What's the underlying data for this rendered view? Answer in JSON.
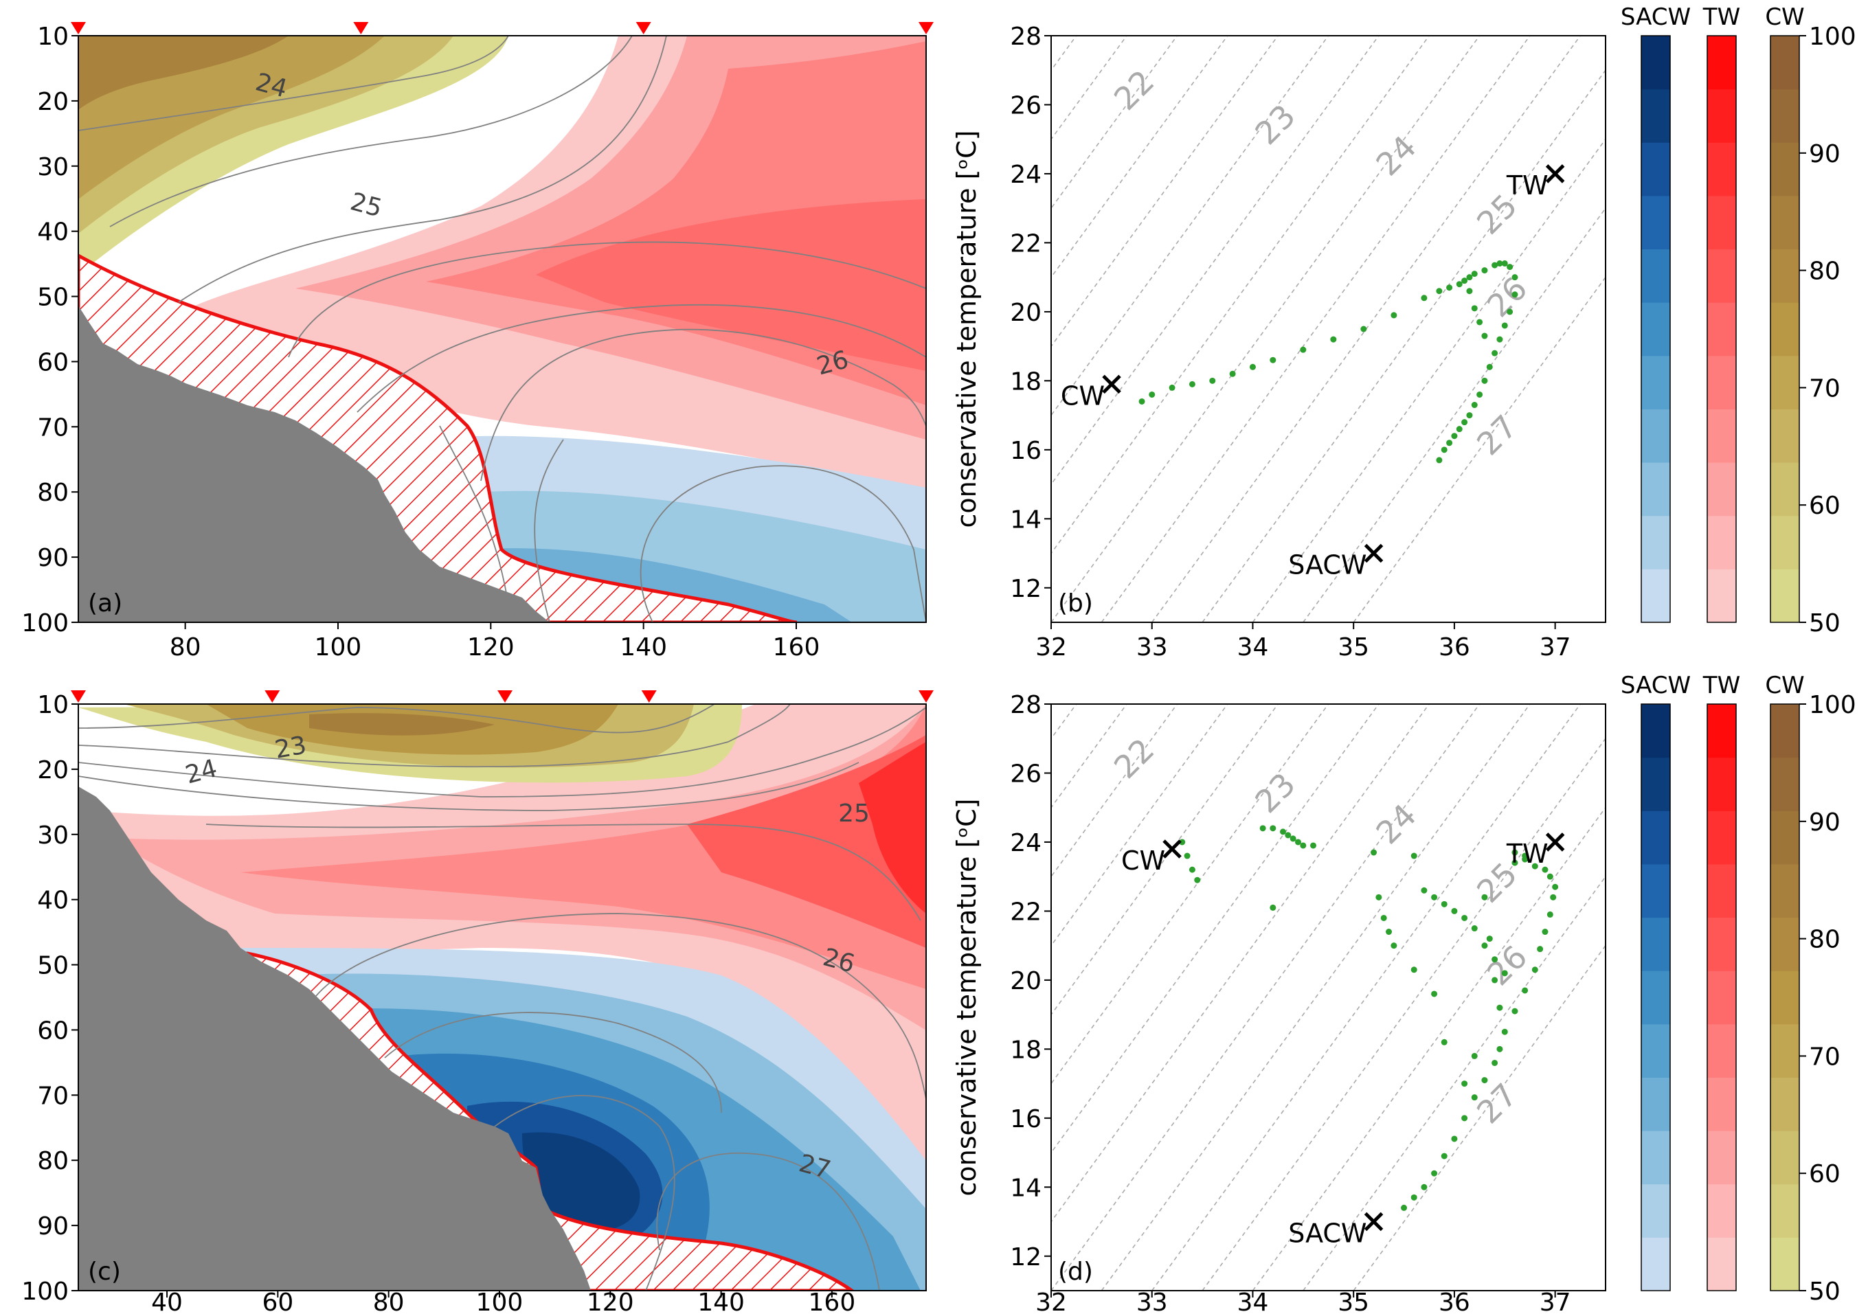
{
  "figure": {
    "colorbar_titles": [
      "SACW",
      "TW",
      "CW"
    ],
    "colorbar_ticks": [
      "50",
      "60",
      "70",
      "80",
      "90",
      "100"
    ],
    "colormaps": {
      "SACW": [
        "#c6dbef",
        "#aacfe6",
        "#8dc0df",
        "#6fafd6",
        "#56a0ce",
        "#3f8ec4",
        "#2f7cbb",
        "#2066ae",
        "#155299",
        "#0c3e7c",
        "#08306b"
      ],
      "TW": [
        "#fcc7c7",
        "#fdb5b5",
        "#fda2a2",
        "#fe8f8f",
        "#fe7c7c",
        "#fe6969",
        "#ff5656",
        "#ff4444",
        "#ff3131",
        "#ff1e1e",
        "#ff0b0b"
      ],
      "CW": [
        "#d8d88a",
        "#d2cc7c",
        "#ccbf6e",
        "#c6b261",
        "#c0a553",
        "#b99845",
        "#b08a40",
        "#a7803d",
        "#9e7539",
        "#966b37",
        "#8f6135"
      ]
    },
    "colors": {
      "land": "#808080",
      "hatch": "#ee1111",
      "marker": "#ff0000",
      "ts_points": "#2ca02c",
      "contour": "#808080",
      "isopycnal": "#aaaaaa"
    }
  },
  "chart_data": [
    {
      "panel": "(a)",
      "type": "heatmap",
      "description_type": "section",
      "xticks": [
        "80",
        "100",
        "120",
        "140",
        "160"
      ],
      "yticks": [
        "10",
        "20",
        "30",
        "40",
        "50",
        "60",
        "70",
        "80",
        "90",
        "100"
      ],
      "xlim": [
        66,
        177
      ],
      "ylim": [
        100,
        10
      ],
      "contour_labels": [
        "24",
        "25",
        "26"
      ],
      "station_markers_x": [
        66,
        103,
        140,
        177
      ]
    },
    {
      "panel": "(b)",
      "type": "scatter",
      "ylabel": "conservative temperature [ᵒC]",
      "xlabel": "",
      "xlim": [
        32,
        37.5
      ],
      "ylim": [
        11,
        28
      ],
      "xticks": [
        "32",
        "33",
        "34",
        "35",
        "36",
        "37"
      ],
      "yticks": [
        "12",
        "14",
        "16",
        "18",
        "20",
        "22",
        "24",
        "26",
        "28"
      ],
      "isopycnal_labels": [
        "22",
        "23",
        "24",
        "25",
        "26",
        "27"
      ],
      "water_masses": [
        {
          "name": "TW",
          "x": 37.0,
          "y": 24.0
        },
        {
          "name": "CW",
          "x": 32.6,
          "y": 17.9
        },
        {
          "name": "SACW",
          "x": 35.2,
          "y": 13.0
        }
      ],
      "series": [
        {
          "x": [
            32.9,
            33.0,
            33.2,
            33.4,
            33.6,
            33.8,
            34.0,
            34.2,
            34.5,
            34.8,
            35.1,
            35.4,
            35.7,
            35.85,
            35.95,
            36.05,
            36.1,
            36.15,
            36.2,
            36.3,
            36.4,
            36.45,
            36.5,
            36.55,
            36.6,
            36.6,
            36.55,
            36.5,
            36.45,
            36.4,
            36.35,
            36.3,
            36.25,
            36.2,
            36.15,
            36.1,
            36.05,
            36.0,
            35.95,
            35.9,
            35.85,
            36.15,
            36.2,
            36.25,
            36.3
          ],
          "y": [
            17.4,
            17.6,
            17.8,
            17.9,
            18.0,
            18.2,
            18.4,
            18.6,
            18.9,
            19.2,
            19.5,
            19.9,
            20.4,
            20.6,
            20.7,
            20.8,
            20.9,
            21.0,
            21.1,
            21.2,
            21.35,
            21.4,
            21.4,
            21.3,
            21.0,
            20.5,
            20.0,
            19.6,
            19.2,
            18.8,
            18.4,
            18.0,
            17.6,
            17.3,
            17.0,
            16.8,
            16.6,
            16.4,
            16.2,
            16.0,
            15.7,
            20.6,
            20.1,
            19.7,
            19.3
          ]
        }
      ]
    },
    {
      "panel": "(c)",
      "type": "heatmap",
      "description_type": "section",
      "xticks": [
        "40",
        "60",
        "80",
        "100",
        "120",
        "140",
        "160"
      ],
      "yticks": [
        "10",
        "20",
        "30",
        "40",
        "50",
        "60",
        "70",
        "80",
        "90",
        "100"
      ],
      "xlim": [
        24,
        177
      ],
      "ylim": [
        100,
        10
      ],
      "contour_labels": [
        "23",
        "24",
        "25",
        "26",
        "27"
      ],
      "station_markers_x": [
        24,
        59,
        101,
        127,
        177
      ]
    },
    {
      "panel": "(d)",
      "type": "scatter",
      "ylabel": "conservative temperature [ᵒC]",
      "xlabel": "",
      "xlim": [
        32,
        37.5
      ],
      "ylim": [
        11,
        28
      ],
      "xticks": [
        "32",
        "33",
        "34",
        "35",
        "36",
        "37"
      ],
      "yticks": [
        "12",
        "14",
        "16",
        "18",
        "20",
        "22",
        "24",
        "26",
        "28"
      ],
      "isopycnal_labels": [
        "22",
        "23",
        "24",
        "25",
        "26",
        "27"
      ],
      "water_masses": [
        {
          "name": "TW",
          "x": 37.0,
          "y": 24.0
        },
        {
          "name": "CW",
          "x": 33.2,
          "y": 23.8
        },
        {
          "name": "SACW",
          "x": 35.2,
          "y": 13.0
        }
      ],
      "series": [
        {
          "x": [
            33.3,
            33.35,
            33.4,
            33.45,
            34.1,
            34.2,
            34.3,
            34.35,
            34.4,
            34.45,
            34.5,
            34.2,
            34.6,
            35.2,
            35.25,
            35.3,
            35.35,
            35.4,
            35.6,
            35.6,
            35.7,
            35.8,
            35.9,
            36.0,
            36.1,
            36.2,
            36.3,
            36.4,
            36.5,
            36.6,
            36.7,
            36.8,
            36.9,
            36.95,
            37.0,
            36.98,
            36.95,
            36.9,
            36.85,
            36.8,
            36.7,
            36.6,
            36.5,
            36.45,
            36.4,
            36.3,
            36.2,
            36.1,
            36.0,
            35.9,
            35.8,
            35.7,
            35.6,
            35.5,
            36.3,
            36.35,
            36.4,
            36.45,
            36.2,
            36.1,
            35.9,
            35.8,
            36.6,
            36.7
          ],
          "y": [
            24.0,
            23.6,
            23.2,
            22.9,
            24.4,
            24.4,
            24.3,
            24.2,
            24.1,
            24.0,
            23.9,
            22.1,
            23.9,
            23.7,
            22.4,
            21.8,
            21.4,
            21.0,
            23.6,
            20.3,
            22.6,
            22.4,
            22.2,
            22.0,
            21.8,
            21.5,
            21.0,
            20.6,
            20.2,
            23.4,
            23.5,
            23.3,
            23.2,
            23.0,
            22.7,
            22.4,
            21.9,
            21.4,
            20.9,
            20.3,
            19.7,
            19.1,
            18.5,
            18.0,
            17.6,
            17.1,
            16.6,
            16.0,
            15.4,
            14.9,
            14.4,
            14.0,
            13.7,
            13.4,
            22.4,
            21.2,
            20.0,
            19.2,
            17.8,
            17.0,
            18.2,
            19.6,
            23.7,
            23.6
          ]
        }
      ]
    }
  ]
}
